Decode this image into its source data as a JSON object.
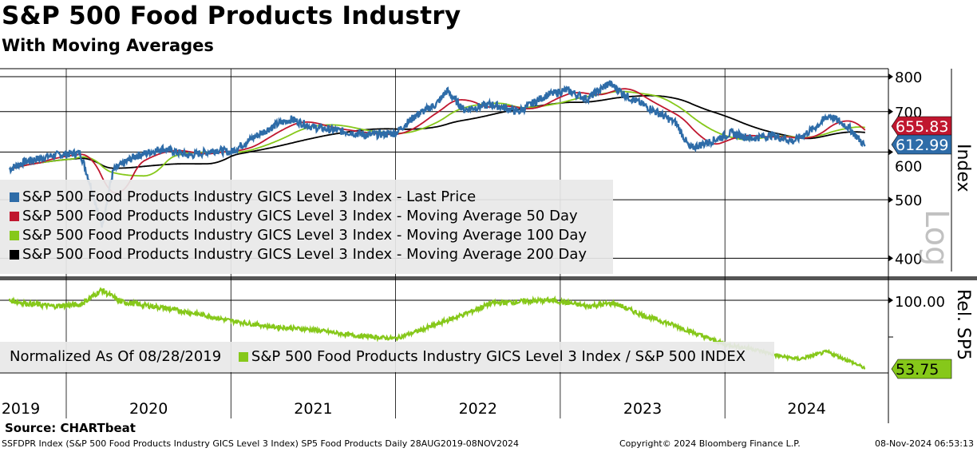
{
  "title": "S&P 500 Food Products Industry",
  "subtitle": "With Moving Averages",
  "source": "Source: CHARTbeat",
  "footer": {
    "left": "SSFDPR Index (S&P 500 Food Products Industry GICS Level 3 Index) SP5 Food Products  Daily 28AUG2019-08NOV2024",
    "center": "Copyright© 2024 Bloomberg Finance L.P.",
    "right": "08-Nov-2024 06:53:13"
  },
  "colors": {
    "price": "#2e6ca8",
    "ma50": "#c0172f",
    "ma100": "#86c81a",
    "ma200": "#000000",
    "rel": "#86c81a"
  },
  "chart_data": [
    {
      "type": "line",
      "title": "S&P 500 Food Products Industry",
      "ylabel": "Index",
      "yscale": "log",
      "watermark": "Log",
      "ylim": [
        380,
        820
      ],
      "yticks": [
        "800",
        "700",
        "600",
        "500",
        "400"
      ],
      "xticks": [
        "2019",
        "2020",
        "2021",
        "2022",
        "2023",
        "2024"
      ],
      "legend": [
        "S&P 500 Food Products Industry GICS Level 3 Index - Last Price",
        "S&P 500 Food Products Industry GICS Level 3 Index - Moving Average 50 Day",
        "S&P 500 Food Products Industry GICS Level 3 Index - Moving Average 100 Day",
        "S&P 500 Food Products Industry GICS Level 3 Index - Moving Average 200 Day"
      ],
      "legend_position": "bottom-left",
      "last_price_label": "612.99",
      "ma50_label": "655.83",
      "dates": [
        "2019-08-28",
        "2019-10-01",
        "2019-12-01",
        "2020-02-01",
        "2020-03-20",
        "2020-04-15",
        "2020-06-01",
        "2020-08-01",
        "2020-10-01",
        "2020-12-01",
        "2021-01-01",
        "2021-03-01",
        "2021-04-15",
        "2021-05-15",
        "2021-07-01",
        "2021-09-01",
        "2021-11-01",
        "2022-01-01",
        "2022-02-15",
        "2022-04-01",
        "2022-04-25",
        "2022-06-01",
        "2022-08-01",
        "2022-10-01",
        "2022-12-01",
        "2023-01-15",
        "2023-03-01",
        "2023-04-20",
        "2023-06-01",
        "2023-08-01",
        "2023-09-15",
        "2023-10-15",
        "2023-12-01",
        "2024-01-15",
        "2024-03-01",
        "2024-04-15",
        "2024-06-01",
        "2024-07-15",
        "2024-08-20",
        "2024-10-01",
        "2024-11-08"
      ],
      "price": [
        562,
        578,
        592,
        598,
        452,
        560,
        590,
        608,
        592,
        605,
        600,
        640,
        668,
        680,
        660,
        650,
        640,
        645,
        690,
        720,
        758,
        705,
        720,
        700,
        745,
        760,
        735,
        780,
        740,
        700,
        670,
        608,
        625,
        645,
        632,
        640,
        625,
        655,
        690,
        660,
        613
      ]
    },
    {
      "type": "line",
      "ylabel": "Rel. SP5",
      "annotation": "Normalized As Of 08/28/2019",
      "legend": [
        "S&P 500 Food Products Industry GICS Level 3 Index / S&P 500 INDEX"
      ],
      "ylim": [
        50,
        110
      ],
      "yticks": [
        "100.00"
      ],
      "last_label": "53.75",
      "dates": [
        "2019-08-28",
        "2019-10-01",
        "2019-12-01",
        "2020-02-01",
        "2020-03-20",
        "2020-05-01",
        "2020-08-01",
        "2020-11-01",
        "2021-01-01",
        "2021-04-01",
        "2021-07-01",
        "2021-10-01",
        "2022-01-01",
        "2022-03-01",
        "2022-06-15",
        "2022-08-01",
        "2022-10-01",
        "2022-12-15",
        "2023-03-01",
        "2023-05-01",
        "2023-07-01",
        "2023-09-01",
        "2023-11-01",
        "2024-01-01",
        "2024-03-01",
        "2024-05-01",
        "2024-06-15",
        "2024-08-15",
        "2024-10-01",
        "2024-11-08"
      ],
      "values": [
        100,
        98,
        96,
        97,
        107,
        99,
        95,
        90,
        86,
        82,
        80,
        76,
        74,
        80,
        92,
        98,
        99,
        100,
        96,
        98,
        90,
        84,
        77,
        70,
        67,
        62,
        60,
        65,
        59,
        53.75
      ]
    }
  ]
}
